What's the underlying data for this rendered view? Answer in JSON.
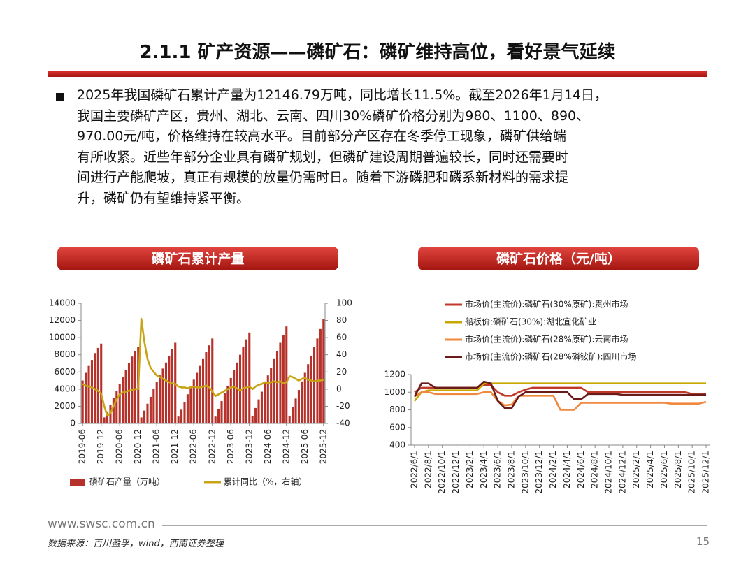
{
  "header": {
    "title": "2.1.1 矿产资源——磷矿石：磷矿维持高位，看好景气延续"
  },
  "body": {
    "paragraph": [
      "2025年我国磷矿石累计产量为12146.79万吨，同比增长11.5%。截至2026年1月14日，",
      "我国主要磷矿产区，贵州、湖北、云南、四川30%磷矿价格分别为980、1100、890、",
      "970.00元/吨，价格维持在较高水平。目前部分产区存在冬季停工现象，磷矿供给端",
      "有所收紧。近些年部分企业具有磷矿规划，但磷矿建设周期普遍较长，同时还需要时",
      "间进行产能爬坡，真正有规模的放量仍需时日。随着下游磷肥和磷系新材料的需求提",
      "升，磷矿仍有望维持紧平衡。"
    ]
  },
  "chart_data": [
    {
      "type": "bar",
      "title": "磷矿石累计产量",
      "categories": [
        "2019-06",
        null,
        null,
        null,
        null,
        null,
        "2019-12",
        null,
        null,
        null,
        null,
        null,
        "2020-06",
        null,
        null,
        null,
        null,
        null,
        "2020-12",
        null,
        null,
        null,
        null,
        null,
        "2021-06",
        null,
        null,
        null,
        null,
        null,
        "2021-12",
        null,
        null,
        null,
        null,
        null,
        "2022-06",
        null,
        null,
        null,
        null,
        null,
        "2022-12",
        null,
        null,
        null,
        null,
        null,
        "2023-06",
        null,
        null,
        null,
        null,
        null,
        "2023-12",
        null,
        null,
        null,
        null,
        null,
        "2024-06",
        null,
        null,
        null,
        null,
        null,
        "2024-12",
        null,
        null,
        null,
        null,
        null,
        "2025-06",
        null,
        null,
        null,
        null,
        null,
        "2025-12"
      ],
      "series": [
        {
          "name": "磷矿石产量（万吨）",
          "type": "bar",
          "color": "#b5312a",
          "values": [
            5000,
            5900,
            6700,
            7400,
            8200,
            8800,
            9300,
            700,
            1400,
            2200,
            3000,
            3800,
            4600,
            5400,
            6200,
            7000,
            7800,
            8400,
            8900,
            700,
            1500,
            2300,
            3100,
            4000,
            4800,
            5600,
            6400,
            7100,
            7900,
            8700,
            9400,
            800,
            1600,
            2500,
            3400,
            4300,
            5100,
            5900,
            6700,
            7500,
            8300,
            9100,
            9900,
            800,
            1700,
            2600,
            3500,
            4400,
            5300,
            6200,
            7100,
            8000,
            8900,
            9800,
            10600,
            900,
            1800,
            2800,
            3700,
            4700,
            5600,
            6500,
            7500,
            8400,
            9400,
            10300,
            11300,
            900,
            1900,
            2900,
            3900,
            4900,
            5900,
            6900,
            7900,
            8900,
            9900,
            11000,
            12146.79
          ]
        },
        {
          "name": "累计同比（%，右轴）",
          "type": "line",
          "axis": "y2",
          "color": "#c8a415",
          "values": [
            6,
            4,
            3,
            2,
            0,
            -2,
            -5,
            -20,
            -31,
            -28,
            -20,
            -12,
            -6,
            -4,
            -3,
            -2,
            -1,
            0,
            0,
            82,
            55,
            35,
            25,
            20,
            16,
            14,
            12,
            10,
            8,
            7,
            6,
            3,
            2,
            2,
            1,
            2,
            3,
            2,
            2,
            3,
            4,
            2,
            -3,
            -8,
            -6,
            -4,
            -2,
            0,
            2,
            3,
            1,
            -2,
            1,
            2,
            3,
            0,
            3,
            5,
            6,
            8,
            7,
            8,
            9,
            8,
            9,
            7,
            8,
            15,
            14,
            12,
            10,
            12,
            13,
            11,
            10,
            9,
            10,
            10,
            11
          ]
        }
      ],
      "ylim": [
        0,
        14000
      ],
      "yticks": [
        0,
        2000,
        4000,
        6000,
        8000,
        10000,
        12000,
        14000
      ],
      "y2lim": [
        -40,
        100
      ],
      "y2ticks": [
        -40,
        -20,
        0,
        20,
        40,
        60,
        80,
        100
      ]
    },
    {
      "type": "line",
      "title": "磷矿石价格（元/吨）",
      "categories": [
        "2022/6/1",
        null,
        "2022/8/1",
        null,
        "2022/10/1",
        null,
        "2022/12/1",
        null,
        "2023/2/1",
        null,
        "2023/4/1",
        null,
        "2023/6/1",
        null,
        "2023/8/1",
        null,
        "2023/10/1",
        null,
        "2023/12/1",
        null,
        "2024/2/1",
        null,
        "2024/4/1",
        null,
        "2024/6/1",
        null,
        "2024/8/1",
        null,
        "2024/10/1",
        null,
        "2024/12/1",
        null,
        "2025/2/1",
        null,
        "2025/4/1",
        null,
        "2025/6/1",
        null,
        "2025/8/1",
        null,
        "2025/10/1",
        null,
        "2025/12/1"
      ],
      "series": [
        {
          "name": "市场价(主流价):磷矿石(30%原矿):贵州市场",
          "color": "#c0392b",
          "values": [
            1000,
            1050,
            1050,
            1050,
            1050,
            1050,
            1050,
            1050,
            1050,
            1050,
            1080,
            1080,
            1000,
            960,
            960,
            1000,
            1030,
            1050,
            1050,
            1050,
            1050,
            1050,
            1050,
            1050,
            1050,
            1000,
            1000,
            1000,
            1000,
            1000,
            1000,
            1000,
            1000,
            1000,
            1000,
            1000,
            1000,
            1000,
            1000,
            1000,
            980,
            980,
            980
          ]
        },
        {
          "name": "船板价:磷矿石(30%):湖北宜化矿业",
          "color": "#c8a800",
          "values": [
            900,
            1000,
            1020,
            1020,
            1020,
            1020,
            1020,
            1020,
            1020,
            1020,
            1100,
            1100,
            1100,
            1100,
            1100,
            1100,
            1100,
            1100,
            1100,
            1100,
            1100,
            1100,
            1100,
            1100,
            1100,
            1100,
            1100,
            1100,
            1100,
            1100,
            1100,
            1100,
            1100,
            1100,
            1100,
            1100,
            1100,
            1100,
            1100,
            1100,
            1100,
            1100,
            1100
          ]
        },
        {
          "name": "市场价(主流价):磷矿石(28%原矿):云南市场",
          "color": "#f0883e",
          "values": [
            950,
            1000,
            1000,
            980,
            980,
            980,
            980,
            980,
            980,
            980,
            1000,
            1000,
            900,
            850,
            860,
            960,
            960,
            960,
            960,
            960,
            960,
            800,
            800,
            800,
            880,
            880,
            880,
            880,
            880,
            880,
            880,
            880,
            880,
            880,
            880,
            880,
            880,
            870,
            870,
            870,
            870,
            870,
            890
          ]
        },
        {
          "name": "市场价(主流价):磷矿石(28%磷铵矿):四川市场",
          "color": "#6b1a1a",
          "values": [
            950,
            1100,
            1100,
            1050,
            1050,
            1050,
            1050,
            1050,
            1050,
            1050,
            1120,
            1100,
            900,
            820,
            820,
            950,
            1000,
            1000,
            1000,
            1000,
            1000,
            1000,
            1000,
            920,
            920,
            980,
            980,
            980,
            980,
            980,
            970,
            970,
            970,
            970,
            970,
            970,
            970,
            970,
            970,
            970,
            970,
            970,
            970
          ]
        }
      ],
      "ylim": [
        400,
        1200
      ],
      "yticks": [
        400,
        600,
        800,
        1000,
        1200
      ]
    }
  ],
  "footer": {
    "website": "www.swsc.com.cn",
    "source": "数据来源：百川盈孚，wind，西南证券整理",
    "page": 15
  }
}
